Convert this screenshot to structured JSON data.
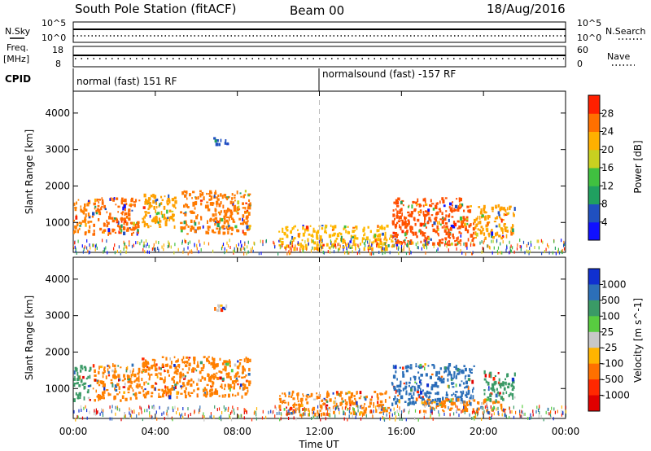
{
  "header": {
    "station": "South Pole Station (fitACF)",
    "beam": "Beam 00",
    "date": "18/Aug/2016"
  },
  "left_labels": {
    "nsky": "N.Sky",
    "freq_line1": "Freq.",
    "freq_line2": "[MHz]",
    "cpid": "CPID"
  },
  "right_labels": {
    "nsearch": "N.Search",
    "nave": "Nave"
  },
  "cpid_segments": [
    {
      "start_hour": 0,
      "label": "normal (fast) 151 RF"
    },
    {
      "start_hour": 12,
      "label": "normalsound (fast) -157 RF"
    }
  ],
  "x_axis": {
    "label": "Time UT",
    "ticks": [
      "00:00",
      "04:00",
      "08:00",
      "12:00",
      "16:00",
      "20:00",
      "00:00"
    ],
    "range_hours": [
      0,
      24
    ],
    "dashed_marker_hour": 12
  },
  "noise_panel": {
    "left_ticks": [
      "10^5",
      "10^0"
    ],
    "right_ticks": [
      "10^5",
      "10^0"
    ]
  },
  "freq_panel": {
    "left_ticks": [
      "18",
      "8"
    ],
    "right_ticks": [
      "60",
      "0"
    ]
  },
  "chart_data": [
    {
      "type": "heatmap",
      "title": "Power",
      "ylabel": "Slant Range [km]",
      "ylim": [
        180,
        4600
      ],
      "yticks": [
        1000,
        2000,
        3000,
        4000
      ],
      "colorbar": {
        "label": "Power [dB]",
        "ticks": [
          "4",
          "8",
          "12",
          "16",
          "20",
          "24",
          "28"
        ],
        "colors": [
          "#1010ff",
          "#2050c0",
          "#20a060",
          "#40c040",
          "#c8d020",
          "#ffb000",
          "#ff7000",
          "#ff2000"
        ]
      },
      "echo_regions": [
        {
          "t0": 0.0,
          "t1": 0.8,
          "r0": 700,
          "r1": 1650,
          "color": "#ff8000"
        },
        {
          "t0": 0.9,
          "t1": 3.2,
          "r0": 700,
          "r1": 1700,
          "color": "#ff6a00"
        },
        {
          "t0": 3.3,
          "t1": 5.0,
          "r0": 900,
          "r1": 1800,
          "color": "#ffa000"
        },
        {
          "t0": 5.2,
          "t1": 8.6,
          "r0": 700,
          "r1": 1900,
          "color": "#ff7a00"
        },
        {
          "t0": 10.0,
          "t1": 15.5,
          "r0": 300,
          "r1": 950,
          "color": "#ffb800"
        },
        {
          "t0": 15.5,
          "t1": 19.5,
          "r0": 400,
          "r1": 1700,
          "color": "#ff5000"
        },
        {
          "t0": 19.5,
          "t1": 21.5,
          "r0": 600,
          "r1": 1500,
          "color": "#ffa000"
        },
        {
          "t0": 6.8,
          "t1": 7.5,
          "r0": 3150,
          "r1": 3350,
          "color": "#2050c0"
        }
      ]
    },
    {
      "type": "heatmap",
      "title": "Velocity",
      "ylabel": "Slant Range [km]",
      "ylim": [
        180,
        4600
      ],
      "yticks": [
        1000,
        2000,
        3000,
        4000
      ],
      "colorbar": {
        "label": "Velocity [m s^-1]",
        "ticks": [
          "1000",
          "500",
          "100",
          "25",
          "-25",
          "-100",
          "-500",
          "-1000"
        ],
        "colors": [
          "#1030d0",
          "#2c6fb8",
          "#3a9a66",
          "#58cc40",
          "#c8c8c8",
          "#ffb400",
          "#ff7000",
          "#ff2800",
          "#e00000"
        ]
      },
      "echo_regions": [
        {
          "t0": 0.0,
          "t1": 0.8,
          "r0": 700,
          "r1": 1650,
          "color": "#3a9a66"
        },
        {
          "t0": 0.9,
          "t1": 3.2,
          "r0": 700,
          "r1": 1700,
          "color": "#ff8000"
        },
        {
          "t0": 3.3,
          "t1": 8.6,
          "r0": 800,
          "r1": 1900,
          "color": "#ff8000"
        },
        {
          "t0": 10.0,
          "t1": 15.5,
          "r0": 300,
          "r1": 950,
          "color": "#ff8000"
        },
        {
          "t0": 15.5,
          "t1": 19.5,
          "r0": 600,
          "r1": 1700,
          "color": "#2c6fb8"
        },
        {
          "t0": 17.0,
          "t1": 21.0,
          "r0": 400,
          "r1": 750,
          "color": "#ff8000"
        },
        {
          "t0": 20.0,
          "t1": 21.5,
          "r0": 700,
          "r1": 1500,
          "color": "#3a9a66"
        },
        {
          "t0": 6.8,
          "t1": 7.5,
          "r0": 3150,
          "r1": 3350,
          "color": "#c8c8c8"
        }
      ]
    }
  ]
}
